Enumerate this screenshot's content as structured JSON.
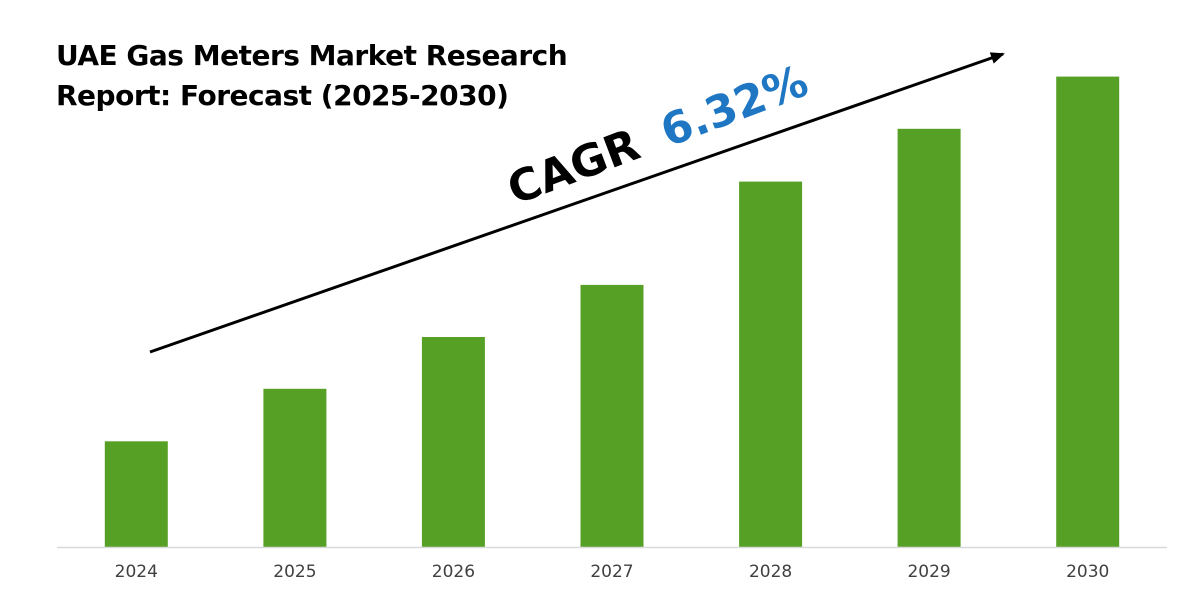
{
  "chart_data": {
    "type": "bar",
    "title": [
      "UAE Gas Meters Market Research",
      "Report: Forecast (2025-2030)"
    ],
    "categories": [
      "2024",
      "2025",
      "2026",
      "2027",
      "2028",
      "2029",
      "2030"
    ],
    "values": [
      29.8,
      44.6,
      59.2,
      73.9,
      103.0,
      117.9,
      132.6
    ],
    "ylim": [
      0,
      148
    ],
    "xlabel": "",
    "ylabel": "",
    "grid": false,
    "legend": "none",
    "annotation": {
      "label": "CAGR",
      "value": "6.32%"
    },
    "colors": {
      "bar": "#56a125",
      "axis": "#d9d9d9",
      "annotation_label": "#000000",
      "annotation_value": "#1f77c4",
      "arrow": "#000000"
    }
  }
}
